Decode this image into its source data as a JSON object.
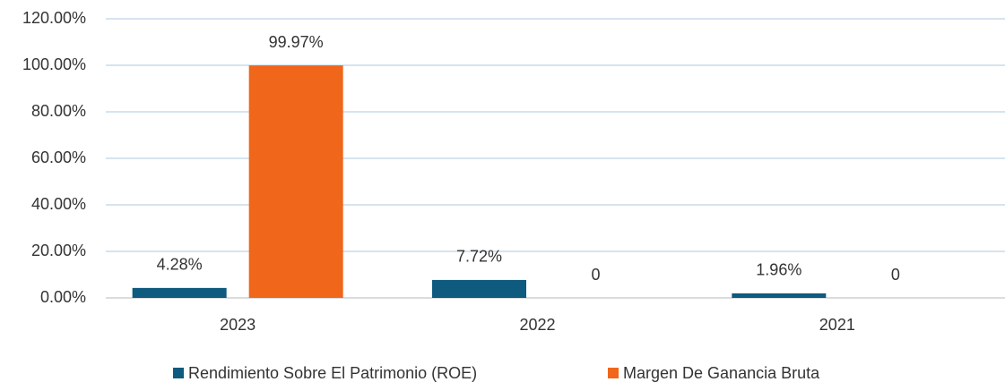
{
  "chart_data": {
    "type": "bar",
    "categories": [
      "2023",
      "2022",
      "2021"
    ],
    "series": [
      {
        "name": "Rendimiento Sobre El Patrimonio (ROE)",
        "color": "#0f5a7f",
        "values": [
          4.28,
          7.72,
          1.96
        ],
        "value_labels": [
          "4.28%",
          "7.72%",
          "1.96%"
        ]
      },
      {
        "name": "Margen De Ganancia Bruta",
        "color": "#f0661a",
        "values": [
          99.97,
          0,
          0
        ],
        "value_labels": [
          "99.97%",
          "0",
          "0"
        ]
      }
    ],
    "ylim": [
      0,
      120
    ],
    "yticks": [
      {
        "value": 0,
        "label": "0.00%"
      },
      {
        "value": 20,
        "label": "20.00%"
      },
      {
        "value": 40,
        "label": "40.00%"
      },
      {
        "value": 60,
        "label": "60.00%"
      },
      {
        "value": 80,
        "label": "80.00%"
      },
      {
        "value": 100,
        "label": "100.00%"
      },
      {
        "value": 120,
        "label": "120.00%"
      }
    ],
    "grid": true,
    "legend": "bottom"
  }
}
